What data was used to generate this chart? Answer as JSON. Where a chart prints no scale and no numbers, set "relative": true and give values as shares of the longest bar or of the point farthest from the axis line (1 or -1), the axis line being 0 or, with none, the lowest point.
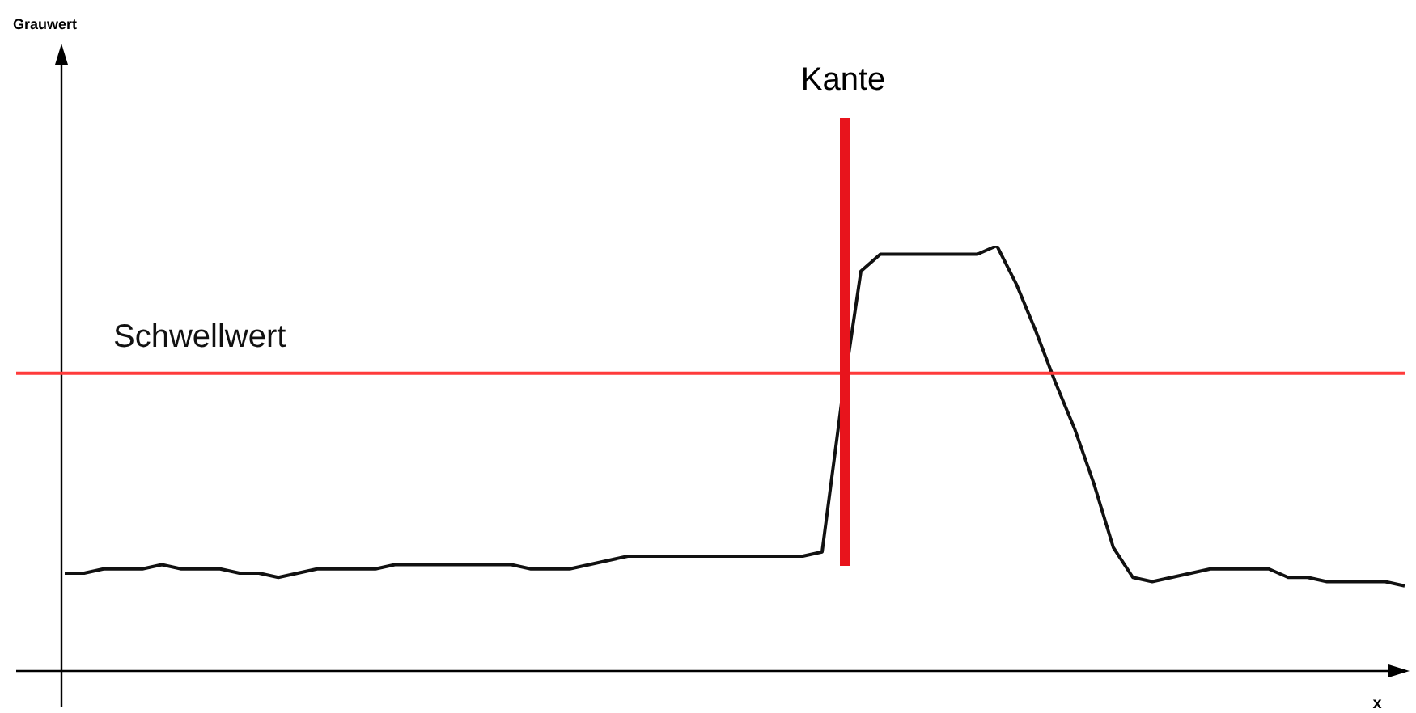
{
  "chart_data": {
    "type": "line",
    "relative": true,
    "xlabel": "x",
    "line_style": "solid",
    "annotations": [
      "Grauwert",
      "Kante"
    ],
    "categories": [
      null,
      null,
      null,
      null,
      null,
      null,
      null,
      null,
      null,
      null,
      null,
      null,
      null,
      null,
      null,
      null,
      null,
      null,
      null,
      null,
      null,
      null,
      null,
      null,
      null,
      null,
      null,
      null,
      null,
      null,
      null,
      null,
      null,
      null,
      null,
      null,
      null,
      null,
      null,
      null,
      null,
      null,
      null,
      null,
      null,
      null,
      null,
      null,
      null,
      null,
      null,
      null,
      null,
      null,
      null,
      null,
      null,
      null,
      null,
      null,
      null,
      null,
      null,
      null,
      null,
      null,
      null,
      null,
      null,
      null
    ],
    "series": [
      {
        "color": "#111111",
        "values": [
          0.23,
          0.23,
          0.24,
          0.24,
          0.24,
          0.25,
          0.24,
          0.24,
          0.24,
          0.23,
          0.23,
          0.22,
          0.23,
          0.24,
          0.24,
          0.24,
          0.24,
          0.25,
          0.25,
          0.25,
          0.25,
          0.25,
          0.25,
          0.25,
          0.24,
          0.24,
          0.24,
          0.25,
          0.26,
          0.27,
          0.27,
          0.27,
          0.27,
          0.27,
          0.27,
          0.27,
          0.27,
          0.27,
          0.27,
          0.28,
          0.63,
          0.94,
          0.98,
          0.98,
          0.98,
          0.98,
          0.98,
          0.98,
          1,
          0.91,
          0.8,
          0.68,
          0.57,
          0.44,
          0.29,
          0.22,
          0.21,
          0.22,
          0.23,
          0.24,
          0.24,
          0.24,
          0.24,
          0.22,
          0.22,
          0.21,
          0.21,
          0.21,
          0.21,
          0.2
        ]
      }
    ],
    "ref_lines": [
      {
        "axis": "y",
        "value": 0.7,
        "label": "Schwellwert",
        "color": "#ff3b3b"
      }
    ]
  }
}
